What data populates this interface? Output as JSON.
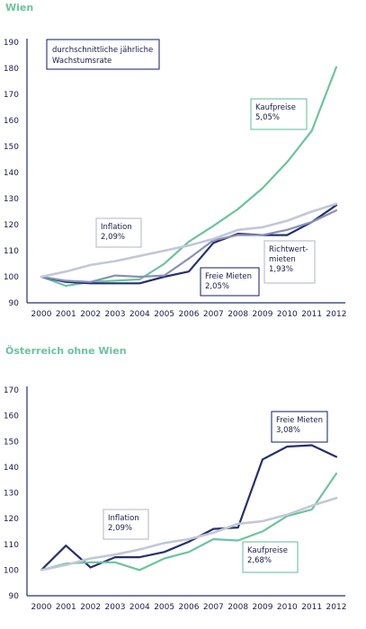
{
  "colors": {
    "title": "#6cc3a0",
    "kaufpreise": "#6cc3a0",
    "freie_mieten": "#25306e",
    "inflation": "#c3c7d6",
    "richtwertmieten": "#8a90b6",
    "axis": "#25306e",
    "box_navy": "#25306e",
    "box_gray": "#b9bccb",
    "box_green": "#6cc3a0"
  },
  "chart_data": [
    {
      "type": "line",
      "title": "Wien",
      "x": [
        2000,
        2001,
        2002,
        2003,
        2004,
        2005,
        2006,
        2007,
        2008,
        2009,
        2010,
        2011,
        2012
      ],
      "ylim": [
        90,
        190
      ],
      "yticks": [
        90,
        100,
        110,
        120,
        130,
        140,
        150,
        160,
        170,
        180,
        190
      ],
      "series": [
        {
          "name": "Kaufpreise",
          "key": "kaufpreise",
          "values": [
            100,
            96.5,
            98,
            98.5,
            99,
            105,
            113.5,
            119.5,
            126,
            134,
            144,
            156,
            180.5
          ]
        },
        {
          "name": "Freie Mieten",
          "key": "freie_mieten",
          "values": [
            100,
            98,
            97.5,
            97.5,
            97.5,
            100,
            102,
            113,
            116.5,
            116,
            116,
            121,
            127.5
          ]
        },
        {
          "name": "Richtwertmieten",
          "key": "richtwertmieten",
          "values": [
            100,
            98.5,
            98,
            100.5,
            100,
            100.5,
            107,
            114,
            116,
            116,
            118,
            121,
            125.5
          ]
        },
        {
          "name": "Inflation",
          "key": "inflation",
          "values": [
            100,
            102,
            104.5,
            106,
            108,
            110,
            112,
            114.5,
            118,
            119,
            121.5,
            125,
            128
          ]
        }
      ],
      "legend_note": "durchschnittliche jährliche Wachstumsrate",
      "annotations": [
        {
          "label": "Kaufpreise",
          "value": "5,05%",
          "style": "green"
        },
        {
          "label": "Inflation",
          "value": "2,09%",
          "style": "gray"
        },
        {
          "label": "Richtwert-",
          "label2": "mieten",
          "value": "1,93%",
          "style": "gray"
        },
        {
          "label": "Freie Mieten",
          "value": "2,05%",
          "style": "navy"
        }
      ]
    },
    {
      "type": "line",
      "title": "Österreich ohne Wien",
      "x": [
        2000,
        2001,
        2002,
        2003,
        2004,
        2005,
        2006,
        2007,
        2008,
        2009,
        2010,
        2011,
        2012
      ],
      "ylim": [
        90,
        170
      ],
      "yticks": [
        90,
        100,
        110,
        120,
        130,
        140,
        150,
        160,
        170
      ],
      "series": [
        {
          "name": "Freie Mieten",
          "key": "freie_mieten",
          "values": [
            100,
            109.5,
            101,
            105,
            105,
            107,
            111,
            116,
            116.5,
            143,
            148,
            148.5,
            144
          ]
        },
        {
          "name": "Kaufpreise",
          "key": "kaufpreise",
          "values": [
            100,
            102.5,
            103,
            103,
            100,
            104.5,
            107,
            112,
            111.5,
            115,
            121,
            123.5,
            137.5
          ]
        },
        {
          "name": "Inflation",
          "key": "inflation",
          "values": [
            100,
            102,
            104.5,
            106,
            108,
            110.5,
            112,
            114.5,
            118,
            119,
            121.5,
            125,
            128
          ]
        }
      ],
      "annotations": [
        {
          "label": "Freie Mieten",
          "value": "3,08%",
          "style": "navy"
        },
        {
          "label": "Inflation",
          "value": "2,09%",
          "style": "gray"
        },
        {
          "label": "Kaufpreise",
          "value": "2,68%",
          "style": "green"
        }
      ]
    }
  ]
}
